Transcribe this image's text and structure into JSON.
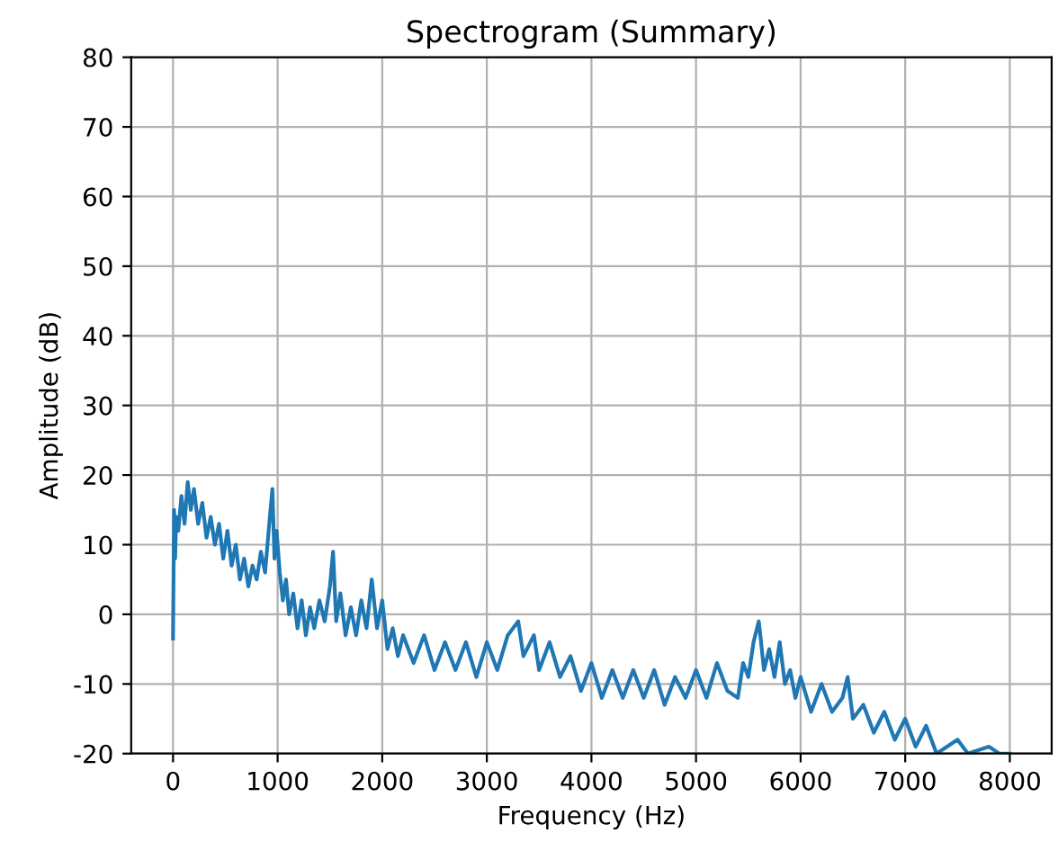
{
  "chart_data": {
    "type": "line",
    "title": "Spectrogram (Summary)",
    "xlabel": "Frequency (Hz)",
    "ylabel": "Amplitude (dB)",
    "xlim": [
      -400,
      8400
    ],
    "ylim": [
      -20,
      80
    ],
    "xticks": [
      0,
      1000,
      2000,
      3000,
      4000,
      5000,
      6000,
      7000,
      8000
    ],
    "yticks": [
      -20,
      -10,
      0,
      10,
      20,
      30,
      40,
      50,
      60,
      70,
      80
    ],
    "grid": true,
    "series": [
      {
        "color": "#1f77b4",
        "x": [
          0,
          10,
          20,
          30,
          50,
          80,
          110,
          140,
          170,
          200,
          240,
          280,
          320,
          360,
          400,
          440,
          480,
          520,
          560,
          600,
          640,
          680,
          720,
          760,
          800,
          840,
          880,
          920,
          950,
          970,
          990,
          1020,
          1050,
          1080,
          1110,
          1150,
          1190,
          1230,
          1270,
          1310,
          1350,
          1400,
          1450,
          1500,
          1530,
          1560,
          1600,
          1650,
          1700,
          1750,
          1800,
          1850,
          1900,
          1950,
          2000,
          2050,
          2100,
          2150,
          2200,
          2300,
          2400,
          2500,
          2600,
          2700,
          2800,
          2900,
          3000,
          3100,
          3200,
          3300,
          3350,
          3450,
          3500,
          3600,
          3700,
          3800,
          3900,
          4000,
          4100,
          4200,
          4300,
          4400,
          4500,
          4600,
          4700,
          4800,
          4900,
          5000,
          5100,
          5200,
          5300,
          5400,
          5450,
          5500,
          5550,
          5600,
          5650,
          5700,
          5750,
          5800,
          5850,
          5900,
          5950,
          6000,
          6100,
          6200,
          6300,
          6400,
          6450,
          6500,
          6600,
          6700,
          6800,
          6900,
          7000,
          7100,
          7200,
          7300,
          7500,
          7600,
          7800,
          7900,
          8000
        ],
        "values": [
          -3.5,
          15,
          8,
          14,
          12,
          17,
          13,
          19,
          15,
          18,
          13,
          16,
          11,
          14,
          10,
          13,
          8,
          12,
          7,
          10,
          5,
          8,
          4,
          7,
          5,
          9,
          6,
          13,
          18,
          8,
          12,
          6,
          2,
          5,
          0,
          3,
          -2,
          2,
          -3,
          1,
          -2,
          2,
          -1,
          4,
          9,
          -1,
          3,
          -3,
          1,
          -3,
          2,
          -2,
          5,
          -2,
          2,
          -5,
          -2,
          -6,
          -3,
          -7,
          -3,
          -8,
          -4,
          -8,
          -4,
          -9,
          -4,
          -8,
          -3,
          -1,
          -6,
          -3,
          -8,
          -4,
          -9,
          -6,
          -11,
          -7,
          -12,
          -8,
          -12,
          -8,
          -12,
          -8,
          -13,
          -9,
          -12,
          -8,
          -12,
          -7,
          -11,
          -12,
          -7,
          -9,
          -4,
          -1,
          -8,
          -5,
          -9,
          -4,
          -10,
          -8,
          -12,
          -9,
          -14,
          -10,
          -14,
          -12,
          -9,
          -15,
          -13,
          -17,
          -14,
          -18,
          -15,
          -19,
          -16,
          -20,
          -18,
          -20,
          -19,
          -20,
          -20
        ]
      }
    ]
  }
}
